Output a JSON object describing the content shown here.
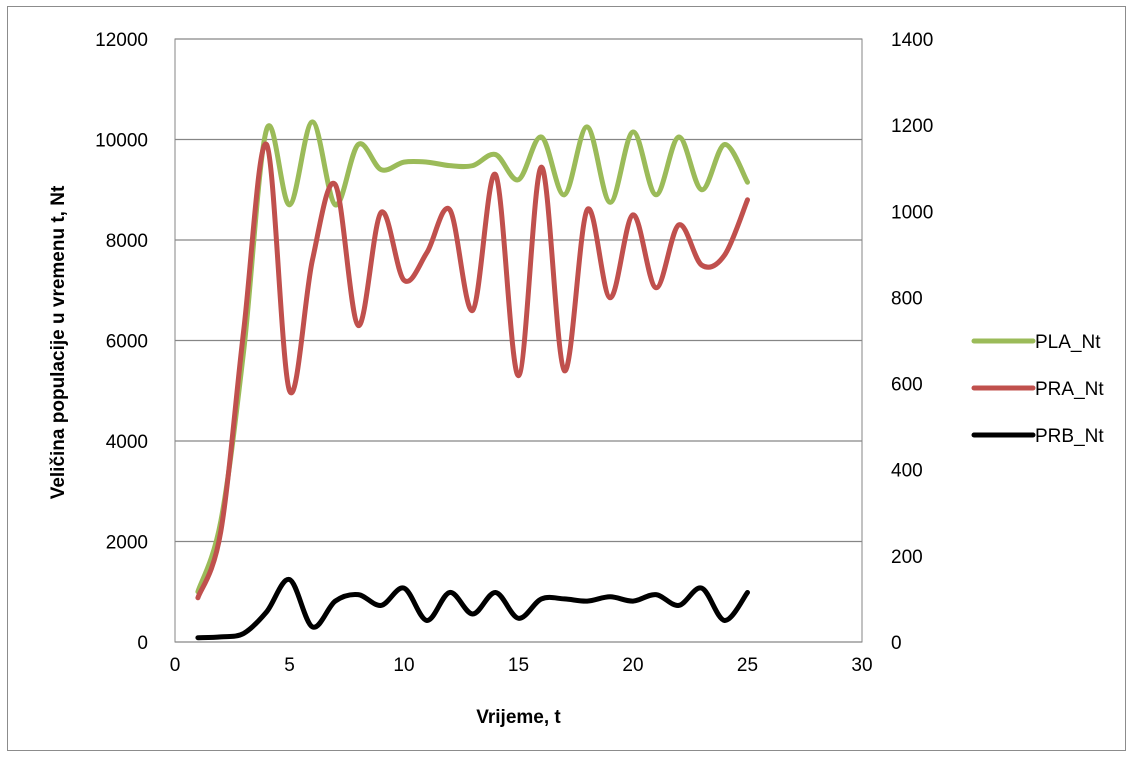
{
  "chart_data": {
    "type": "line",
    "xlabel": "Vrijeme, t",
    "ylabel": "Veličina populacije u vremenu t, Nt",
    "xlim": [
      0,
      30
    ],
    "xticks": [
      0,
      5,
      10,
      15,
      20,
      25,
      30
    ],
    "ylim_left": [
      0,
      12000
    ],
    "yticks_left": [
      0,
      2000,
      4000,
      6000,
      8000,
      10000,
      12000
    ],
    "ylim_right": [
      0,
      1400
    ],
    "yticks_right": [
      0,
      200,
      400,
      600,
      800,
      1000,
      1200,
      1400
    ],
    "grid": "horizontal",
    "legend_position": "right",
    "x": [
      1,
      2,
      3,
      4,
      5,
      6,
      7,
      8,
      9,
      10,
      11,
      12,
      13,
      14,
      15,
      16,
      17,
      18,
      19,
      20,
      21,
      22,
      23,
      24,
      25
    ],
    "series": [
      {
        "name": "PLA_Nt",
        "axis": "left",
        "color": "#9bbb59",
        "values": [
          1000,
          2400,
          5800,
          10200,
          8700,
          10350,
          8700,
          9900,
          9400,
          9550,
          9550,
          9480,
          9480,
          9700,
          9200,
          10050,
          8900,
          10250,
          8750,
          10150,
          8900,
          10050,
          9000,
          9900,
          9150
        ]
      },
      {
        "name": "PRA_Nt",
        "axis": "left",
        "color": "#c0504d",
        "values": [
          880,
          2200,
          6200,
          9900,
          5000,
          7600,
          9100,
          6300,
          8550,
          7200,
          7750,
          8600,
          6600,
          9300,
          5300,
          9450,
          5400,
          8600,
          6850,
          8500,
          7050,
          8300,
          7500,
          7700,
          8800
        ]
      },
      {
        "name": "PRB_Nt",
        "axis": "right",
        "color": "#000000",
        "values": [
          10,
          12,
          20,
          70,
          145,
          35,
          95,
          110,
          85,
          125,
          50,
          115,
          65,
          115,
          55,
          100,
          100,
          95,
          105,
          95,
          110,
          85,
          125,
          50,
          115
        ]
      }
    ]
  }
}
